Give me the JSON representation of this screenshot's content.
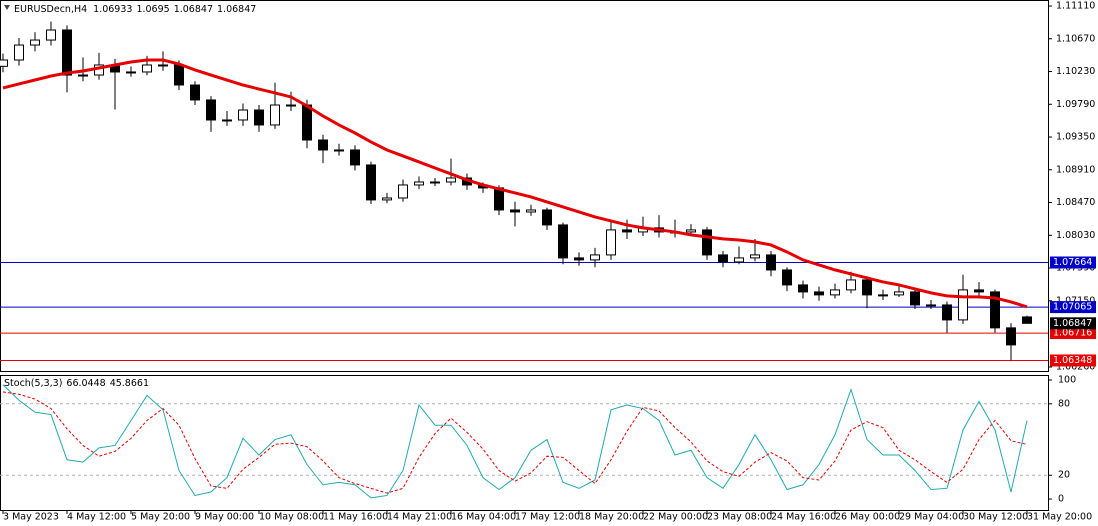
{
  "chart_data": [
    {
      "type": "candlestick",
      "title": "EURUSDecn,H4",
      "ylim": [
        1.06193,
        1.11191
      ],
      "yticks": [
        {
          "value": 1.1111,
          "label": "1.11110"
        },
        {
          "value": 1.1067,
          "label": "1.10670"
        },
        {
          "value": 1.1023,
          "label": "1.10230"
        },
        {
          "value": 1.0979,
          "label": "1.09790"
        },
        {
          "value": 1.0935,
          "label": "1.09350"
        },
        {
          "value": 1.0891,
          "label": "1.08910"
        },
        {
          "value": 1.0847,
          "label": "1.08470"
        },
        {
          "value": 1.0803,
          "label": "1.08030"
        },
        {
          "value": 1.0759,
          "label": "1.07590"
        },
        {
          "value": 1.0715,
          "label": "1.07150"
        },
        {
          "value": 1.0626,
          "label": "1.06260"
        }
      ],
      "up_color": "#ffffff",
      "down_color": "#000000",
      "ohlc": [
        [
          1.103,
          1.1047,
          1.1022,
          1.10385
        ],
        [
          1.10385,
          1.1068,
          1.1031,
          1.10586
        ],
        [
          1.10586,
          1.1076,
          1.105,
          1.10653
        ],
        [
          1.10653,
          1.109,
          1.1058,
          1.10788
        ],
        [
          1.10788,
          1.1085,
          1.0995,
          1.10183
        ],
        [
          1.10183,
          1.1042,
          1.101,
          1.10183
        ],
        [
          1.10183,
          1.1048,
          1.1012,
          1.10318
        ],
        [
          1.10318,
          1.104,
          1.0972,
          1.10224
        ],
        [
          1.10224,
          1.103,
          1.1016,
          1.10224
        ],
        [
          1.10224,
          1.1044,
          1.1018,
          1.10318
        ],
        [
          1.10318,
          1.105,
          1.1024,
          1.10318
        ],
        [
          1.10318,
          1.1038,
          1.0998,
          1.10049
        ],
        [
          1.10049,
          1.101,
          1.0978,
          1.09848
        ],
        [
          1.09848,
          1.099,
          1.0942,
          1.09579
        ],
        [
          1.09579,
          1.097,
          1.095,
          1.09579
        ],
        [
          1.09579,
          1.098,
          1.095,
          1.09713
        ],
        [
          1.09713,
          1.0978,
          1.0942,
          1.09512
        ],
        [
          1.09512,
          1.1008,
          1.0946,
          1.0978
        ],
        [
          1.0978,
          1.0996,
          1.097,
          1.0978
        ],
        [
          1.0978,
          1.0985,
          1.092,
          1.0931
        ],
        [
          1.0931,
          1.0938,
          1.09,
          1.09176
        ],
        [
          1.09176,
          1.0926,
          1.091,
          1.09176
        ],
        [
          1.09176,
          1.0924,
          1.089,
          1.08975
        ],
        [
          1.08975,
          1.0902,
          1.0845,
          1.08505
        ],
        [
          1.08505,
          1.086,
          1.0846,
          1.08531
        ],
        [
          1.08531,
          1.0878,
          1.0848,
          1.08706
        ],
        [
          1.08706,
          1.0882,
          1.0865,
          1.08746
        ],
        [
          1.08746,
          1.088,
          1.0869,
          1.08746
        ],
        [
          1.08746,
          1.0906,
          1.087,
          1.088
        ],
        [
          1.088,
          1.0886,
          1.0864,
          1.08706
        ],
        [
          1.08706,
          1.0874,
          1.086,
          1.08666
        ],
        [
          1.08666,
          1.087,
          1.083,
          1.0837
        ],
        [
          1.0837,
          1.0848,
          1.0815,
          1.08343
        ],
        [
          1.08343,
          1.0844,
          1.0829,
          1.0837
        ],
        [
          1.0837,
          1.084,
          1.081,
          1.08169
        ],
        [
          1.08169,
          1.082,
          1.0764,
          1.07726
        ],
        [
          1.07726,
          1.078,
          1.0762,
          1.07699
        ],
        [
          1.07699,
          1.0786,
          1.076,
          1.07766
        ],
        [
          1.07766,
          1.0822,
          1.077,
          1.08102
        ],
        [
          1.08102,
          1.0824,
          1.0798,
          1.08075
        ],
        [
          1.08075,
          1.0828,
          1.0802,
          1.08129
        ],
        [
          1.08129,
          1.083,
          1.08,
          1.08075
        ],
        [
          1.08075,
          1.0824,
          1.08,
          1.08075
        ],
        [
          1.08075,
          1.0818,
          1.0802,
          1.08102
        ],
        [
          1.08102,
          1.0814,
          1.077,
          1.07766
        ],
        [
          1.07766,
          1.0782,
          1.076,
          1.07672
        ],
        [
          1.07672,
          1.0788,
          1.0764,
          1.07726
        ],
        [
          1.07726,
          1.0798,
          1.0768,
          1.07766
        ],
        [
          1.07766,
          1.0782,
          1.0748,
          1.07564
        ],
        [
          1.07564,
          1.076,
          1.0728,
          1.07363
        ],
        [
          1.07363,
          1.0742,
          1.0718,
          1.07269
        ],
        [
          1.07269,
          1.0734,
          1.0715,
          1.07229
        ],
        [
          1.07229,
          1.0738,
          1.0718,
          1.07296
        ],
        [
          1.07296,
          1.0754,
          1.0725,
          1.0743
        ],
        [
          1.0743,
          1.0748,
          1.0705,
          1.07229
        ],
        [
          1.07229,
          1.073,
          1.0716,
          1.07229
        ],
        [
          1.07229,
          1.0736,
          1.072,
          1.07269
        ],
        [
          1.07269,
          1.073,
          1.0704,
          1.07094
        ],
        [
          1.07094,
          1.0716,
          1.0704,
          1.07094
        ],
        [
          1.07094,
          1.0714,
          1.0672,
          1.06893
        ],
        [
          1.06893,
          1.075,
          1.0684,
          1.07296
        ],
        [
          1.07296,
          1.074,
          1.0718,
          1.07269
        ],
        [
          1.07269,
          1.073,
          1.0672,
          1.06786
        ],
        [
          1.06786,
          1.0685,
          1.06348,
          1.06557
        ],
        [
          1.06933,
          1.0695,
          1.06847,
          1.06847
        ]
      ],
      "ma": {
        "color": "#e60000",
        "values": [
          1.10009,
          1.10063,
          1.10116,
          1.1017,
          1.1021,
          1.10237,
          1.10277,
          1.10318,
          1.10358,
          1.10385,
          1.10385,
          1.10331,
          1.10251,
          1.10183,
          1.10116,
          1.10049,
          1.09995,
          1.09942,
          1.09888,
          1.09767,
          1.09633,
          1.09512,
          1.09404,
          1.09284,
          1.09176,
          1.09096,
          1.09015,
          1.08934,
          1.08854,
          1.08773,
          1.08706,
          1.08652,
          1.08599,
          1.08545,
          1.08478,
          1.08411,
          1.08343,
          1.08276,
          1.08223,
          1.08169,
          1.08129,
          1.08102,
          1.08075,
          1.08035,
          1.08008,
          1.07981,
          1.07967,
          1.07941,
          1.079,
          1.07806,
          1.07699,
          1.07632,
          1.07565,
          1.07511,
          1.07457,
          1.07403,
          1.07363,
          1.07309,
          1.07256,
          1.07215,
          1.07202,
          1.07202,
          1.07188,
          1.07135,
          1.07068
        ]
      },
      "levels": [
        {
          "value": 1.07664,
          "color": "#0000c8"
        },
        {
          "value": 1.07065,
          "color": "#0000c8"
        },
        {
          "value": 1.06716,
          "color": "#e60000"
        },
        {
          "value": 1.06348,
          "color": "#e60000"
        }
      ]
    },
    {
      "type": "line",
      "title": "Stoch(5,3,3)",
      "ylim": [
        -9.2,
        104.2
      ],
      "yticks": [
        0,
        20,
        80,
        100
      ],
      "levels": [
        20,
        80
      ],
      "series": [
        {
          "color": "#20aab0",
          "values": [
            96,
            83,
            73,
            71,
            33,
            31,
            43,
            45,
            66,
            87,
            75,
            24,
            3,
            6,
            18,
            51,
            37,
            50,
            54,
            29,
            12,
            14,
            12,
            1,
            3,
            24,
            79,
            62,
            62,
            45,
            18,
            8,
            18,
            41,
            50,
            14,
            9,
            16,
            75,
            79,
            76,
            66,
            37,
            41,
            18,
            9,
            29,
            54,
            33,
            8,
            12,
            29,
            54,
            92,
            50,
            37,
            37,
            24,
            8,
            9,
            58,
            82,
            58,
            6,
            66.0448
          ]
        },
        {
          "color": "#e60000",
          "dashed": true,
          "values": [
            90,
            88,
            84,
            76,
            59,
            45,
            36,
            40,
            51,
            66,
            76,
            62,
            34,
            11,
            9,
            25,
            35,
            46,
            47,
            44,
            32,
            18,
            13,
            9,
            5,
            9,
            35,
            55,
            68,
            56,
            42,
            24,
            15,
            22,
            36,
            35,
            24,
            13,
            33,
            57,
            77,
            74,
            60,
            48,
            32,
            23,
            19,
            31,
            39,
            32,
            18,
            16,
            32,
            58,
            65,
            60,
            41,
            33,
            23,
            14,
            25,
            50,
            66,
            49,
            45.8661
          ]
        }
      ],
      "xticks": [
        {
          "value": 0,
          "label": "3 May 2023"
        },
        {
          "value": 4,
          "label": "4 May 12:00"
        },
        {
          "value": 8,
          "label": "5 May 20:00"
        },
        {
          "value": 12,
          "label": "9 May 00:00"
        },
        {
          "value": 16,
          "label": "10 May 08:00"
        },
        {
          "value": 20,
          "label": "11 May 16:00"
        },
        {
          "value": 24,
          "label": "14 May 21:00"
        },
        {
          "value": 28,
          "label": "16 May 04:00"
        },
        {
          "value": 32,
          "label": "17 May 12:00"
        },
        {
          "value": 36,
          "label": "18 May 20:00"
        },
        {
          "value": 40,
          "label": "22 May 00:00"
        },
        {
          "value": 44,
          "label": "23 May 08:00"
        },
        {
          "value": 48,
          "label": "24 May 16:00"
        },
        {
          "value": 52,
          "label": "26 May 00:00"
        },
        {
          "value": 56,
          "label": "29 May 04:00"
        },
        {
          "value": 60,
          "label": "30 May 12:00"
        },
        {
          "value": 64,
          "label": "31 May 20:00"
        }
      ]
    }
  ]
}
